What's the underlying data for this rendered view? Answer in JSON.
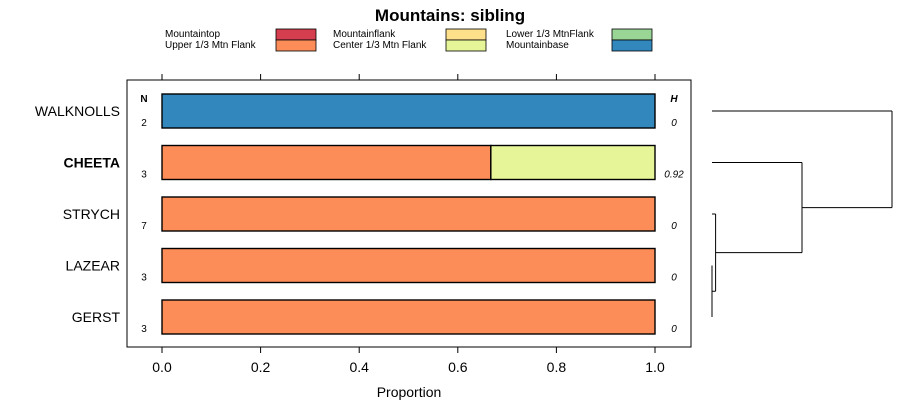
{
  "chart_data": {
    "type": "bar",
    "orientation": "horizontal",
    "stacked": true,
    "title": "Mountains: sibling",
    "xlabel": "Proportion",
    "xlim": [
      0,
      1
    ],
    "xticks": [
      "0.0",
      "0.2",
      "0.4",
      "0.6",
      "0.8",
      "1.0"
    ],
    "xtick_values": [
      0,
      0.2,
      0.4,
      0.6,
      0.8,
      1.0
    ],
    "n_header": "N",
    "h_header": "H",
    "legend": [
      {
        "label": "Mountaintop",
        "color": "#d53e4f"
      },
      {
        "label": "Upper 1/3 Mtn Flank",
        "color": "#fc8d59"
      },
      {
        "label": "Mountainflank",
        "color": "#fee08b"
      },
      {
        "label": "Center 1/3 Mtn Flank",
        "color": "#e6f598"
      },
      {
        "label": "Lower 1/3 MtnFlank",
        "color": "#99d594"
      },
      {
        "label": "Mountainbase",
        "color": "#3288bd"
      }
    ],
    "rows": [
      {
        "label": "WALKNOLLS",
        "n": "2",
        "h": "0",
        "bold": false,
        "segments": [
          {
            "category": "Mountainbase",
            "value": 1.0
          }
        ]
      },
      {
        "label": "CHEETA",
        "n": "3",
        "h": "0.92",
        "bold": true,
        "segments": [
          {
            "category": "Upper 1/3 Mtn Flank",
            "value": 0.667
          },
          {
            "category": "Center 1/3 Mtn Flank",
            "value": 0.333
          }
        ]
      },
      {
        "label": "STRYCH",
        "n": "7",
        "h": "0",
        "bold": false,
        "segments": [
          {
            "category": "Upper 1/3 Mtn Flank",
            "value": 1.0
          }
        ]
      },
      {
        "label": "LAZEAR",
        "n": "3",
        "h": "0",
        "bold": false,
        "segments": [
          {
            "category": "Upper 1/3 Mtn Flank",
            "value": 1.0
          }
        ]
      },
      {
        "label": "GERST",
        "n": "3",
        "h": "0",
        "bold": false,
        "segments": [
          {
            "category": "Upper 1/3 Mtn Flank",
            "value": 1.0
          }
        ]
      }
    ],
    "dendrogram": {
      "type": "hierarchical-clustering",
      "merges": [
        {
          "members": [
            "LAZEAR",
            "GERST"
          ],
          "height": 0.0
        },
        {
          "members": [
            "STRYCH",
            "LAZEAR",
            "GERST"
          ],
          "height": 0.02
        },
        {
          "members": [
            "CHEETA",
            "STRYCH",
            "LAZEAR",
            "GERST"
          ],
          "height": 0.5
        },
        {
          "members": [
            "WALKNOLLS",
            "CHEETA",
            "STRYCH",
            "LAZEAR",
            "GERST"
          ],
          "height": 1.0
        }
      ]
    }
  }
}
